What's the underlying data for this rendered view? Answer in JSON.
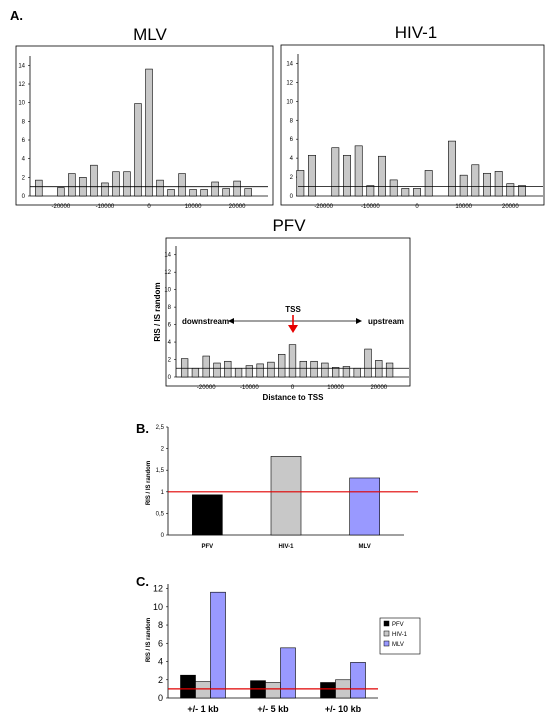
{
  "chart_data": [
    {
      "panel": "A.",
      "type": "bar",
      "title": "MLV",
      "xlabel": "",
      "ylabel": "",
      "x": [
        -25000,
        -22500,
        -20000,
        -17500,
        -15000,
        -12500,
        -10000,
        -7500,
        -5000,
        -2500,
        0,
        2500,
        5000,
        7500,
        10000,
        12500,
        15000,
        17500,
        20000,
        22500,
        25000
      ],
      "values": [
        1.7,
        0.0,
        0.9,
        2.4,
        2.0,
        3.3,
        1.4,
        2.6,
        2.6,
        9.9,
        13.6,
        1.7,
        0.7,
        2.4,
        0.7,
        0.7,
        1.5,
        0.8,
        1.6,
        0.8,
        0.0
      ],
      "xticks": [
        "-20000",
        "-10000",
        "0",
        "10000",
        "20000"
      ],
      "xtick_values": [
        -20000,
        -10000,
        0,
        10000,
        20000
      ],
      "yticks": [
        "0",
        "2",
        "4",
        "6",
        "8",
        "10",
        "12",
        "14"
      ],
      "ylim": [
        0,
        15
      ],
      "xlim": [
        -27000,
        27000
      ],
      "reference_line": 1,
      "bar_color": "#c8c8c8"
    },
    {
      "type": "bar",
      "title": "HIV-1",
      "xlabel": "",
      "ylabel": "",
      "x": [
        -25000,
        -22500,
        -20000,
        -17500,
        -15000,
        -12500,
        -10000,
        -7500,
        -5000,
        -2500,
        0,
        2500,
        5000,
        7500,
        10000,
        12500,
        15000,
        17500,
        20000,
        22500,
        25000
      ],
      "values": [
        2.7,
        4.3,
        0.0,
        5.1,
        4.3,
        5.3,
        1.1,
        4.2,
        1.7,
        0.8,
        0.8,
        2.7,
        0.0,
        5.8,
        2.2,
        3.3,
        2.4,
        2.6,
        1.3,
        1.1,
        0.0
      ],
      "xticks": [
        "-20000",
        "-10000",
        "0",
        "10000",
        "20000"
      ],
      "xtick_values": [
        -20000,
        -10000,
        0,
        10000,
        20000
      ],
      "yticks": [
        "0",
        "2",
        "4",
        "6",
        "8",
        "10",
        "12",
        "14"
      ],
      "ylim": [
        0,
        15
      ],
      "xlim": [
        -25500,
        27000
      ],
      "reference_line": 1,
      "bar_color": "#c8c8c8"
    },
    {
      "type": "bar",
      "title": "PFV",
      "xlabel": "Distance to TSS",
      "ylabel": "RIS / IS random",
      "x": [
        -25000,
        -22500,
        -20000,
        -17500,
        -15000,
        -12500,
        -10000,
        -7500,
        -5000,
        -2500,
        0,
        2500,
        5000,
        7500,
        10000,
        12500,
        15000,
        17500,
        20000,
        22500,
        25000
      ],
      "values": [
        2.1,
        1.0,
        2.4,
        1.6,
        1.8,
        1.0,
        1.3,
        1.5,
        1.7,
        2.6,
        3.7,
        1.8,
        1.8,
        1.6,
        1.1,
        1.2,
        1.0,
        3.2,
        1.9,
        1.6,
        0.0
      ],
      "xticks": [
        "-20000",
        "-10000",
        "0",
        "10000",
        "20000"
      ],
      "xtick_values": [
        -20000,
        -10000,
        0,
        10000,
        20000
      ],
      "yticks": [
        "0",
        "2",
        "4",
        "6",
        "8",
        "10",
        "12",
        "14"
      ],
      "ylim": [
        0,
        15
      ],
      "xlim": [
        -27000,
        27000
      ],
      "reference_line": 1,
      "bar_color": "#c8c8c8",
      "annotations": {
        "left": "downstream",
        "center": "TSS",
        "right": "upstream"
      }
    },
    {
      "panel": "B.",
      "type": "bar",
      "ylabel": "RIS / IS random",
      "categories": [
        "PFV",
        "HIV-1",
        "MLV"
      ],
      "values": [
        0.93,
        1.82,
        1.32
      ],
      "colors": [
        "#000000",
        "#c8c8c8",
        "#9999ff"
      ],
      "yticks": [
        "0",
        "0,5",
        "1",
        "1,5",
        "2",
        "2,5"
      ],
      "ylim": [
        0,
        2.5
      ],
      "reference_line": 1
    },
    {
      "panel": "C.",
      "type": "bar",
      "ylabel": "RIS / IS random",
      "categories": [
        "+/- 1 kb",
        "+/- 5 kb",
        "+/- 10 kb"
      ],
      "series": [
        {
          "name": "PFV",
          "values": [
            2.5,
            1.9,
            1.7
          ],
          "color": "#000000"
        },
        {
          "name": "HIV-1",
          "values": [
            1.8,
            1.7,
            2.0
          ],
          "color": "#c8c8c8"
        },
        {
          "name": "MLV",
          "values": [
            11.6,
            5.5,
            3.9
          ],
          "color": "#9999ff"
        }
      ],
      "yticks": [
        "0",
        "2",
        "4",
        "6",
        "8",
        "10",
        "12"
      ],
      "ylim": [
        0,
        12.5
      ],
      "reference_line": 1,
      "legend_position": "right"
    }
  ]
}
